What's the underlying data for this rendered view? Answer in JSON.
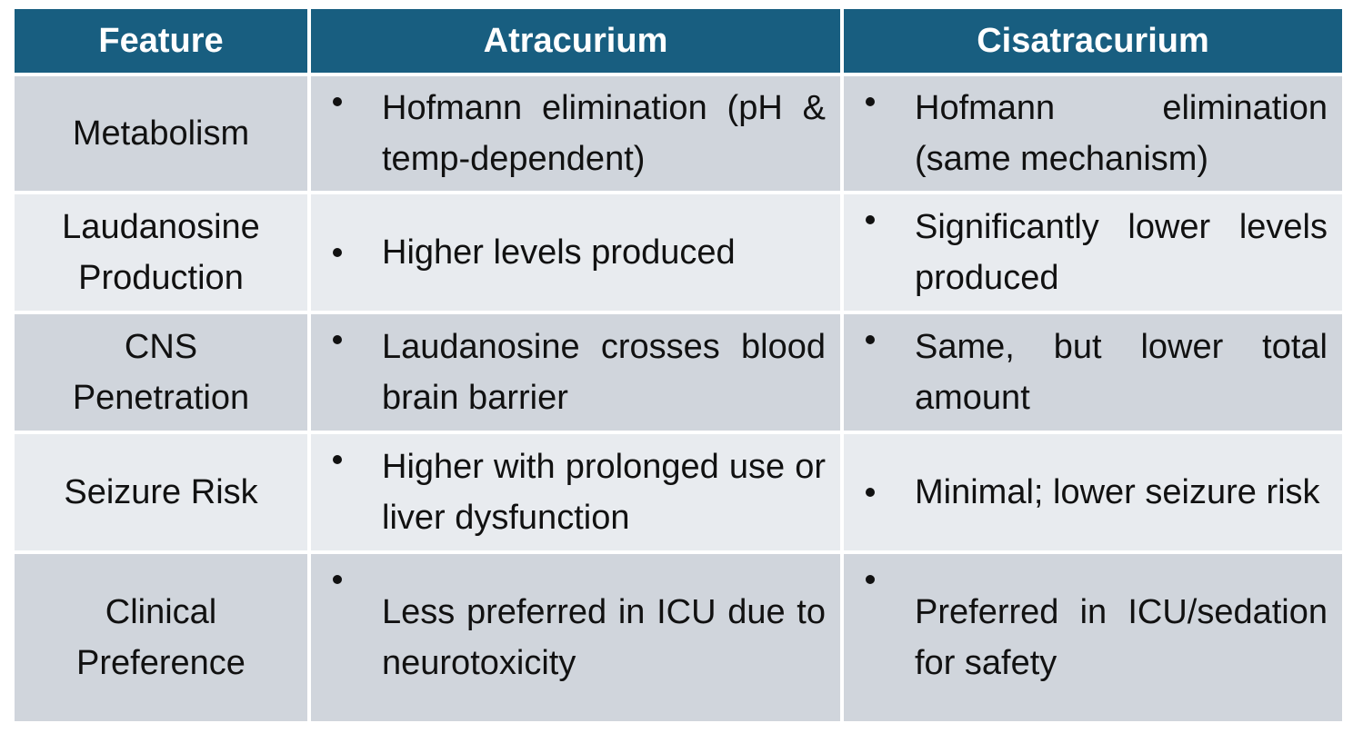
{
  "table": {
    "header": [
      "Feature",
      "Atracurium",
      "Cisatracurium"
    ],
    "rows": [
      [
        "Metabolism",
        "Hofmann elimination (pH & temp-dependent)",
        "Hofmann elimination (same mechanism)"
      ],
      [
        "Laudanosine Production",
        "Higher levels produced",
        "Significantly lower levels produced"
      ],
      [
        "CNS Penetration",
        "Laudanosine crosses blood brain barrier",
        "Same, but lower total amount"
      ],
      [
        "Seizure Risk",
        "Higher with prolonged use or liver dysfunction",
        "Minimal; lower seizure risk"
      ],
      [
        "Clinical Preference",
        "Less preferred in ICU due to neurotoxicity",
        "Preferred in ICU/sedation for safety"
      ]
    ]
  }
}
